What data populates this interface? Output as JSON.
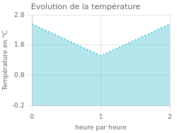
{
  "chart_data": {
    "type": "area",
    "title": "Evolution de la température",
    "xlabel": "heure par heure",
    "ylabel": "Température en °C",
    "x": [
      0,
      1,
      2
    ],
    "values": [
      2.5,
      1.45,
      2.5
    ],
    "xlim": [
      0,
      2
    ],
    "ylim": [
      -0.2,
      2.8
    ],
    "xticks": [
      0,
      1,
      2
    ],
    "yticks": [
      -0.2,
      0.8,
      1.8,
      2.8
    ],
    "color": "#5bc8d8",
    "line_style": "dotted",
    "grid": true
  }
}
